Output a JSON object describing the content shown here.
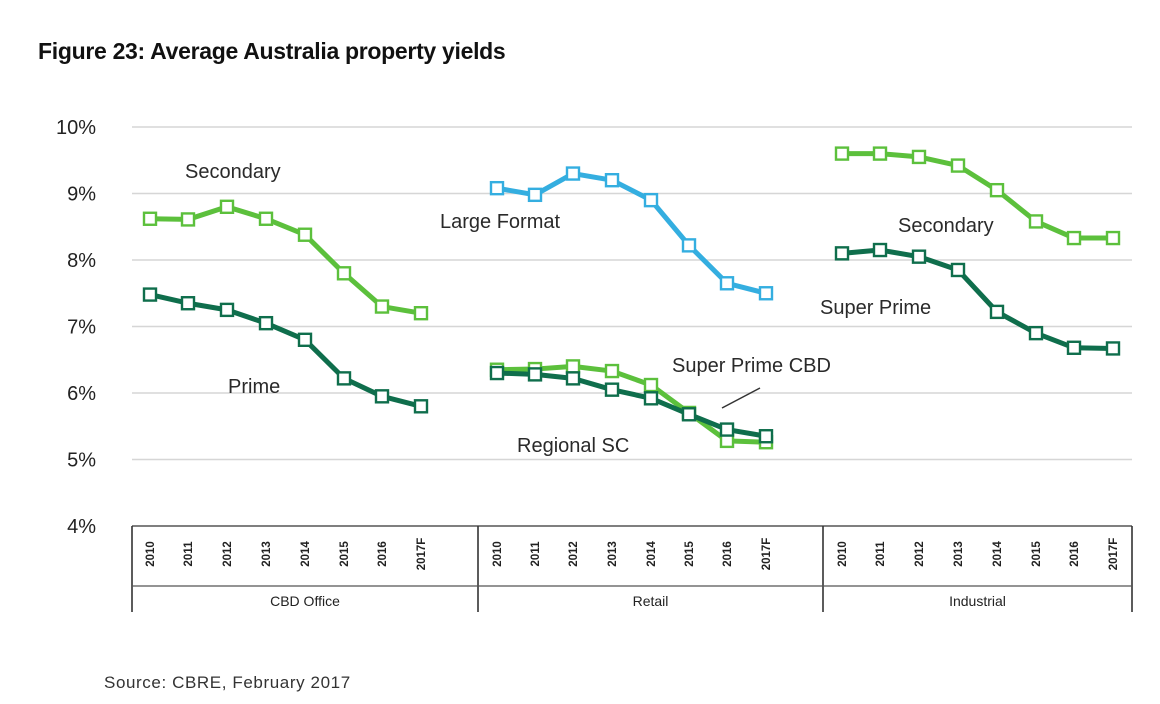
{
  "chart_data": {
    "type": "line",
    "title": "Figure 23: Average Australia property yields",
    "source": "Source: CBRE, February 2017",
    "ylim": [
      4,
      10
    ],
    "y_ticks": [
      "4%",
      "5%",
      "6%",
      "7%",
      "8%",
      "9%",
      "10%"
    ],
    "grid": true,
    "years": [
      "2010",
      "2011",
      "2012",
      "2013",
      "2014",
      "2015",
      "2016",
      "2017F"
    ],
    "groups": [
      {
        "name": "CBD Office",
        "series": [
          {
            "name": "Secondary",
            "color": "#5cc03c",
            "values": [
              8.62,
              8.61,
              8.8,
              8.62,
              8.38,
              7.8,
              7.3,
              7.2
            ]
          },
          {
            "name": "Prime",
            "color": "#0f6e4c",
            "values": [
              7.48,
              7.35,
              7.25,
              7.05,
              6.8,
              6.22,
              5.95,
              5.8
            ]
          }
        ]
      },
      {
        "name": "Retail",
        "series": [
          {
            "name": "Large Format",
            "color": "#34aee0",
            "values": [
              9.08,
              8.98,
              9.3,
              9.2,
              8.9,
              8.22,
              7.65,
              7.5
            ]
          },
          {
            "name": "Super Prime CBD",
            "color": "#5cc03c",
            "values": [
              6.35,
              6.36,
              6.4,
              6.33,
              6.12,
              5.7,
              5.28,
              5.26
            ]
          },
          {
            "name": "Regional SC",
            "color": "#0f6e4c",
            "values": [
              6.3,
              6.28,
              6.22,
              6.05,
              5.92,
              5.68,
              5.45,
              5.35
            ]
          }
        ]
      },
      {
        "name": "Industrial",
        "series": [
          {
            "name": "Secondary",
            "color": "#5cc03c",
            "values": [
              9.6,
              9.6,
              9.55,
              9.42,
              9.05,
              8.58,
              8.33,
              8.33
            ]
          },
          {
            "name": "Super Prime",
            "color": "#0f6e4c",
            "values": [
              8.1,
              8.15,
              8.05,
              7.85,
              7.22,
              6.9,
              6.68,
              6.67
            ]
          }
        ]
      }
    ]
  }
}
